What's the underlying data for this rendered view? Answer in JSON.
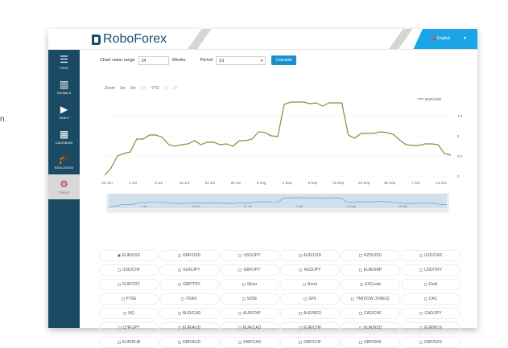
{
  "side_text": "n",
  "header": {
    "brand": "RoboForex",
    "language": "English"
  },
  "sidebar": {
    "items": [
      {
        "label": "FEED",
        "icon": "list-icon"
      },
      {
        "label": "SIGNALS",
        "icon": "bar-chart-icon"
      },
      {
        "label": "VIDEO",
        "icon": "play-icon"
      },
      {
        "label": "CALENDAR",
        "icon": "calendar-icon"
      },
      {
        "label": "EDUCATION",
        "icon": "graduation-cap-icon"
      },
      {
        "label": "TOOLS",
        "icon": "gears-icon",
        "active": true
      }
    ]
  },
  "controls": {
    "range_label": "Chart value range",
    "range_value": "24",
    "range_unit": "Weeks",
    "period_label": "Period",
    "period_value": "D1",
    "calculate_label": "Calculate"
  },
  "zoom": {
    "label": "Zoom",
    "options": [
      "1m",
      "3m",
      "6m",
      "YTD",
      "1y",
      "All"
    ],
    "disabled": [
      2,
      4,
      5
    ]
  },
  "colors": {
    "accent": "#1aa5e6",
    "sidebar": "#1b4a64",
    "series": "#8a8a3a"
  },
  "chart_data": {
    "type": "line",
    "legend": "top-right",
    "series": [
      {
        "name": "EUR/USD",
        "values": [
          0.1,
          1,
          2.5,
          2.8,
          3,
          4.6,
          4.6,
          5.1,
          5.1,
          4.8,
          3.9,
          3.7,
          3.9,
          4.0,
          4.4,
          3.9,
          4.2,
          4.2,
          3.9,
          4.0,
          3.7,
          4.4,
          4.4,
          4.6,
          5.5,
          5.4,
          5.0,
          4.9,
          8.9,
          9.2,
          9.2,
          9.2,
          9.0,
          9.1,
          8.7,
          9.1,
          9.1,
          9.1,
          5.1,
          4.7,
          5.3,
          5.3,
          5.3,
          5.5,
          5.4,
          5.2,
          4.5,
          3.9,
          3.8,
          3.8,
          4.0,
          4.0,
          3.9,
          2.8,
          2.6
        ]
      }
    ],
    "x_ticks": [
      "24 Jun",
      "1 Jul",
      "8 Jul",
      "15 Jul",
      "22 Jul",
      "29 Jul",
      "5 Aug",
      "2 Sep",
      "9 Sep",
      "16 Sep",
      "23 Sep",
      "30 Sep",
      "7 Oct",
      "14 Oct"
    ],
    "y_ticks": [
      "0",
      "2.5",
      "5",
      "7.5"
    ],
    "ylim": [
      0,
      10
    ],
    "grid": true,
    "navigator_ticks": [
      "1 Jul",
      "15 Jul",
      "29 Jul",
      "2 Sep",
      "16 Sep",
      "30 Sep"
    ]
  },
  "instruments": [
    {
      "label": "EUR/USD",
      "checked": true
    },
    {
      "label": "GBP/USD"
    },
    {
      "label": "USD/JPY"
    },
    {
      "label": "AUD/USD"
    },
    {
      "label": "NZD/USD"
    },
    {
      "label": "USD/CAD"
    },
    {
      "label": "USD/CHF"
    },
    {
      "label": "EUR/JPY"
    },
    {
      "label": "GBP/JPY"
    },
    {
      "label": "AUD/JPY"
    },
    {
      "label": "EUR/GBP"
    },
    {
      "label": "USD/TRY"
    },
    {
      "label": "EUR/TRY"
    },
    {
      "label": "GBP/TRY"
    },
    {
      "label": "Silver"
    },
    {
      "label": "Brent"
    },
    {
      "label": "USCrude"
    },
    {
      "label": "Gold"
    },
    {
      "label": "FTSE"
    },
    {
      "label": "FDAX"
    },
    {
      "label": "SX5E"
    },
    {
      "label": "SPX"
    },
    {
      "label": "YM(DOW JONES)"
    },
    {
      "label": "CAC"
    },
    {
      "label": "NQ"
    },
    {
      "label": "AUD/CAD"
    },
    {
      "label": "AUD/CHF"
    },
    {
      "label": "AUD/NZD"
    },
    {
      "label": "CAD/CHF"
    },
    {
      "label": "CAD/JPY"
    },
    {
      "label": "CHF/JPY"
    },
    {
      "label": "EUR/AUD"
    },
    {
      "label": "EUR/CAD"
    },
    {
      "label": "EUR/CHF"
    },
    {
      "label": "EUR/NZD"
    },
    {
      "label": "EUR/PLN"
    },
    {
      "label": "EUR/RUB"
    },
    {
      "label": "GBP/AUD"
    },
    {
      "label": "GBP/CAD"
    },
    {
      "label": "GBP/CHF"
    },
    {
      "label": "GBP/DKK"
    },
    {
      "label": "GBP/NZD"
    }
  ]
}
